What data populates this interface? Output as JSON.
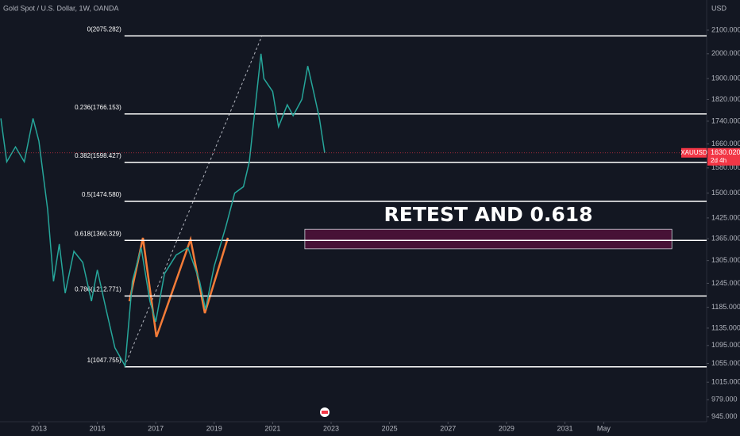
{
  "chart_data": {
    "type": "line",
    "title": "Gold Spot / U.S. Dollar, 1W, OANDA",
    "currency_label": "USD",
    "x": [
      2011.7,
      2011.9,
      2012.2,
      2012.5,
      2012.8,
      2013.0,
      2013.3,
      2013.5,
      2013.7,
      2013.9,
      2014.2,
      2014.5,
      2014.8,
      2015.0,
      2015.3,
      2015.6,
      2015.95,
      2016.2,
      2016.5,
      2016.8,
      2017.0,
      2017.3,
      2017.7,
      2018.1,
      2018.5,
      2018.7,
      2019.0,
      2019.4,
      2019.7,
      2020.0,
      2020.2,
      2020.6,
      2020.7,
      2021.0,
      2021.2,
      2021.5,
      2021.7,
      2022.0,
      2022.2,
      2022.4,
      2022.6,
      2022.78
    ],
    "values": [
      1750,
      1600,
      1650,
      1600,
      1750,
      1670,
      1450,
      1250,
      1350,
      1220,
      1330,
      1300,
      1200,
      1280,
      1180,
      1090,
      1050,
      1250,
      1340,
      1200,
      1150,
      1270,
      1320,
      1340,
      1250,
      1180,
      1290,
      1400,
      1500,
      1520,
      1600,
      2000,
      1900,
      1850,
      1720,
      1800,
      1760,
      1820,
      1950,
      1850,
      1750,
      1630
    ],
    "color": "#26a69a",
    "log_scale": true,
    "xlim": [
      2011.67,
      2035.85
    ],
    "ylim": [
      935.5,
      2234.8
    ],
    "xticks": [
      2013,
      2015,
      2017,
      2019,
      2021,
      2023,
      2025,
      2027,
      2029,
      2031,
      {
        "value": 2032.33,
        "label": "May"
      }
    ],
    "yticks": [
      {
        "value": 2100,
        "label": "2100.000"
      },
      {
        "value": 2000,
        "label": "2000.000"
      },
      {
        "value": 1900,
        "label": "1900.000"
      },
      {
        "value": 1820,
        "label": "1820.000"
      },
      {
        "value": 1740,
        "label": "1740.000"
      },
      {
        "value": 1660,
        "label": "1660.000"
      },
      {
        "value": 1580,
        "label": "1580.000"
      },
      {
        "value": 1500,
        "label": "1500.000"
      },
      {
        "value": 1425,
        "label": "1425.000"
      },
      {
        "value": 1365,
        "label": "1365.000"
      },
      {
        "value": 1305,
        "label": "1305.000"
      },
      {
        "value": 1245,
        "label": "1245.000"
      },
      {
        "value": 1185,
        "label": "1185.000"
      },
      {
        "value": 1135,
        "label": "1135.000"
      },
      {
        "value": 1095,
        "label": "1095.000"
      },
      {
        "value": 1055,
        "label": "1055.000"
      },
      {
        "value": 1015,
        "label": "1015.000"
      },
      {
        "value": 979,
        "label": "979.000"
      },
      {
        "value": 945,
        "label": "945.000"
      }
    ],
    "fib_levels": [
      {
        "label": "0(2075.282)",
        "price": 2075.282
      },
      {
        "label": "0.236(1766.153)",
        "price": 1766.153
      },
      {
        "label": "0.382(1598.427)",
        "price": 1598.427
      },
      {
        "label": "0.5(1474.580)",
        "price": 1474.58
      },
      {
        "label": "0.618(1360.329)",
        "price": 1360.329
      },
      {
        "label": "0.786(1212.771)",
        "price": 1212.771
      },
      {
        "label": "1(1047.755)",
        "price": 1047.755
      }
    ],
    "fib_start": 2015.93,
    "zone": {
      "x": [
        2022.1,
        2034.66
      ],
      "y": [
        1337,
        1392
      ],
      "color": "#880e4f"
    },
    "annotation": "RETEST AND 0.618",
    "last_price": {
      "symbol": "XAUUSD",
      "value": 1630.02,
      "label": "1630.020",
      "countdown": "2d 4h",
      "color": "#f23645"
    }
  }
}
